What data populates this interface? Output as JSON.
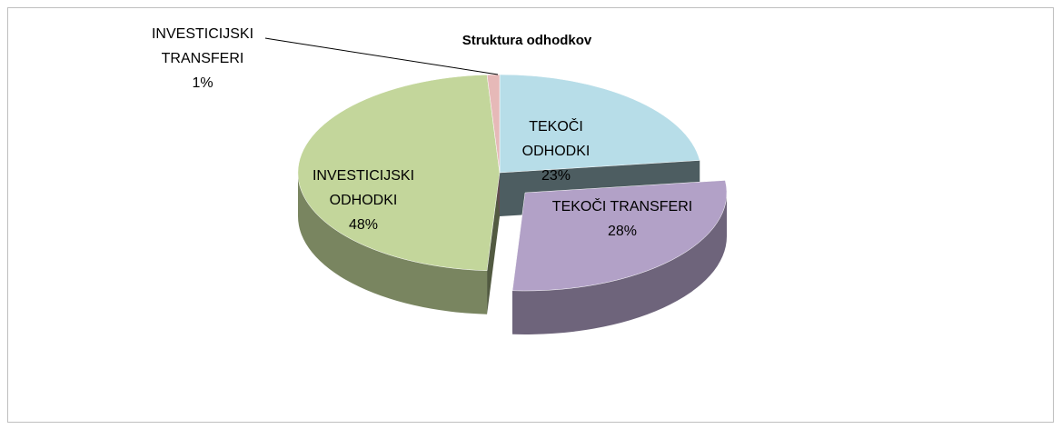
{
  "chart_data": {
    "type": "pie",
    "title": "Struktura odhodkov",
    "categories": [
      "TEKOČI ODHODKI",
      "TEKOČI TRANSFERI",
      "INVESTICIJSKI ODHODKI",
      "INVESTICIJSKI TRANSFERI"
    ],
    "values": [
      23,
      28,
      48,
      1
    ],
    "value_labels": [
      "23%",
      "28%",
      "48%",
      "1%"
    ],
    "colors": [
      "#b7dde8",
      "#b2a1c7",
      "#c3d69b",
      "#e6b9b8"
    ]
  }
}
